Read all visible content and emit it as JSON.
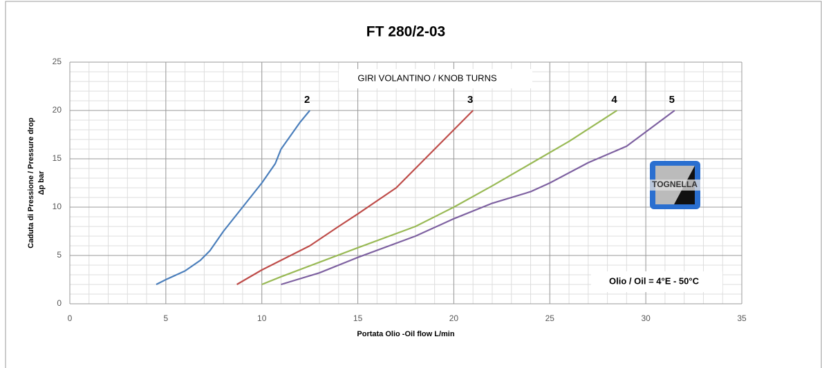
{
  "chart_data": {
    "type": "line",
    "title": "FT 280/2-03",
    "x_label": "Portata Olio -Oil flow L/min",
    "y_label": [
      "Caduta di Pressione / Pressure drop",
      "Δp bar"
    ],
    "annotations": [
      "GIRI VOLANTINO / KNOB TURNS",
      "Olio / Oil = 4°E  - 50°C"
    ],
    "xlim": [
      0,
      35
    ],
    "xticks": [
      0,
      5,
      10,
      15,
      20,
      25,
      30,
      35
    ],
    "ylim": [
      0,
      25
    ],
    "yticks": [
      0,
      5,
      10,
      15,
      20,
      25
    ],
    "grid": true,
    "minor_grid": {
      "x": 1,
      "y": 1
    },
    "series": [
      {
        "name": "2",
        "color": "#4a7ebb",
        "x": [
          4.5,
          5,
          6,
          6.8,
          7.3,
          8,
          9,
          10,
          10.7,
          11,
          12,
          12.5
        ],
        "values": [
          2,
          2.5,
          3.4,
          4.5,
          5.5,
          7.5,
          10,
          12.5,
          14.5,
          16,
          18.8,
          20
        ]
      },
      {
        "name": "3",
        "color": "#be4b48",
        "x": [
          8.7,
          10,
          11,
          12.5,
          14,
          15,
          17,
          18,
          19.5,
          21
        ],
        "values": [
          2,
          3.5,
          4.5,
          6,
          8,
          9.3,
          12,
          14,
          17,
          20
        ]
      },
      {
        "name": "4",
        "color": "#98b954",
        "x": [
          10,
          11,
          13,
          15,
          18,
          20,
          22,
          24,
          26,
          28.5
        ],
        "values": [
          2,
          2.8,
          4.3,
          5.8,
          8,
          10,
          12.2,
          14.5,
          16.8,
          20
        ]
      },
      {
        "name": "5",
        "color": "#7d60a0",
        "x": [
          11,
          13,
          15,
          18,
          20,
          22,
          24,
          25,
          27,
          29,
          31.5
        ],
        "values": [
          2,
          3.2,
          4.8,
          7,
          8.8,
          10.4,
          11.6,
          12.5,
          14.6,
          16.3,
          20
        ]
      }
    ]
  },
  "logo": {
    "text": "TOGNELLA"
  }
}
